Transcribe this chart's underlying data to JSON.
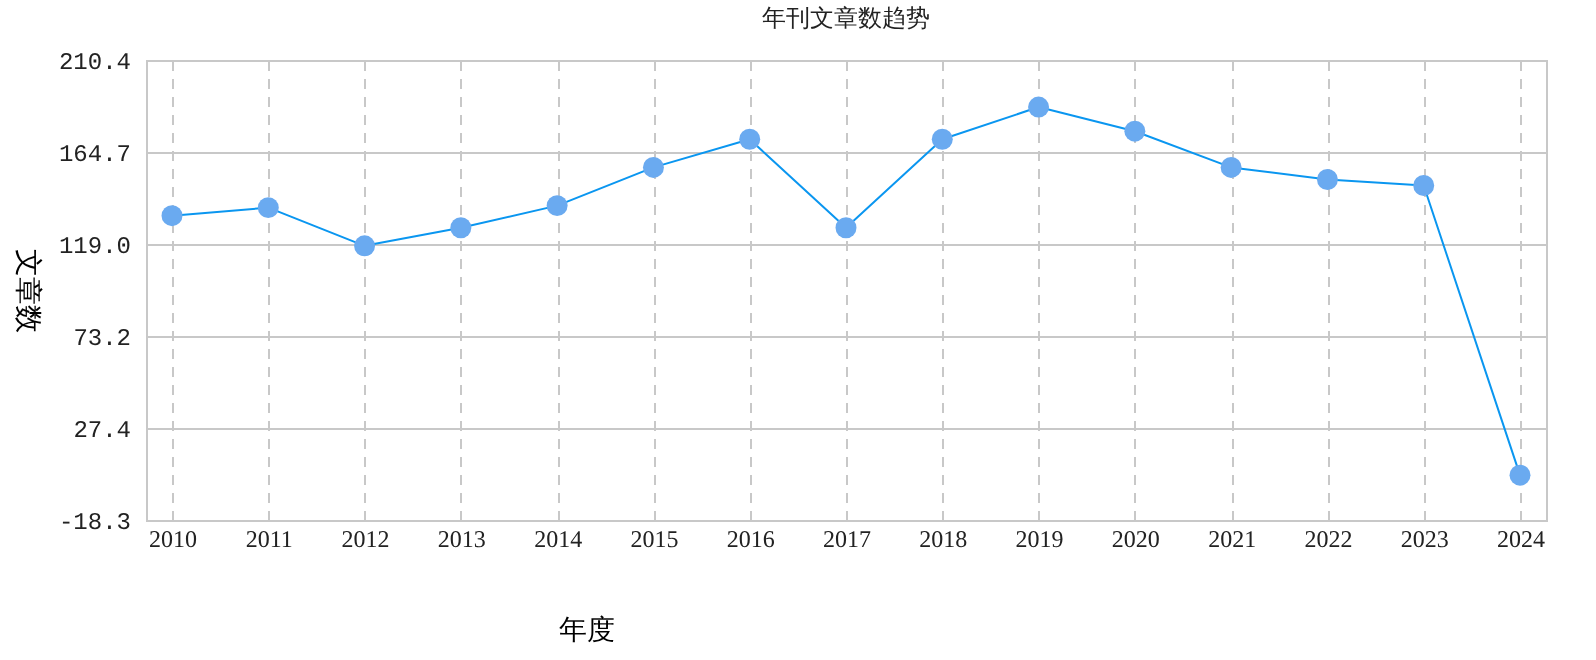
{
  "chart_data": {
    "type": "line",
    "title": "年刊文章数趋势",
    "xlabel": "年度",
    "ylabel": "文章数",
    "categories": [
      "2010",
      "2011",
      "2012",
      "2013",
      "2014",
      "2015",
      "2016",
      "2017",
      "2018",
      "2019",
      "2020",
      "2021",
      "2022",
      "2023",
      "2024"
    ],
    "series": [
      {
        "color": "#0a96f0",
        "values": [
          133,
          137,
          118,
          127,
          138,
          157,
          171,
          127,
          171,
          187,
          175,
          157,
          151,
          148,
          4
        ]
      }
    ],
    "ylim": [
      -18.3,
      210.4
    ],
    "yticks": [
      -18.3,
      27.4,
      73.2,
      {
        "value": 119,
        "label": "119.0"
      },
      164.7,
      210.4
    ],
    "grid": true,
    "marker": "circle",
    "line_style": "solid"
  }
}
